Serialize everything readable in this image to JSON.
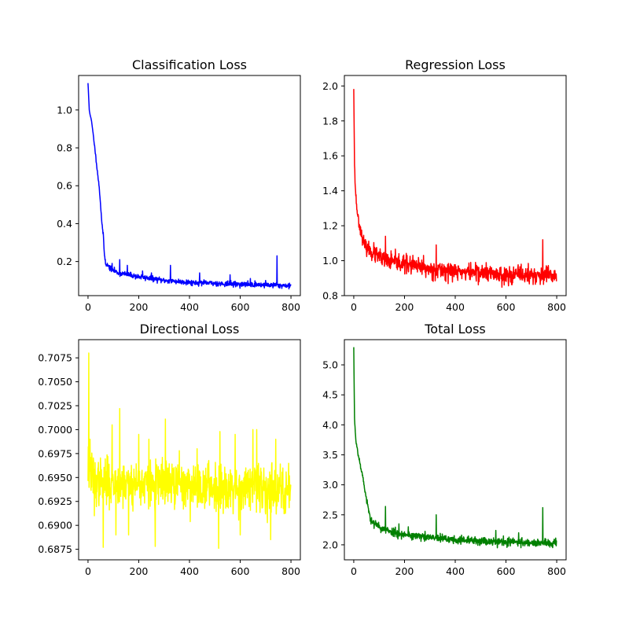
{
  "chart_data": [
    {
      "type": "line",
      "title": "Classification Loss",
      "xlabel": "",
      "ylabel": "",
      "color": "#0000ff",
      "xlim": [
        -37,
        837
      ],
      "ylim": [
        0.02,
        1.182
      ],
      "xticks": [
        0,
        200,
        400,
        600,
        800
      ],
      "xtick_labels": [
        "0",
        "200",
        "400",
        "600",
        "800"
      ],
      "yticks": [
        0.2,
        0.4,
        0.6,
        0.8,
        1.0
      ],
      "ytick_labels": [
        "0.2",
        "0.4",
        "0.6",
        "0.8",
        "1.0"
      ],
      "n_points": 800,
      "curve": {
        "kind": "decay",
        "start": 1.14,
        "points": [
          [
            0,
            1.14
          ],
          [
            5,
            1.0
          ],
          [
            15,
            0.93
          ],
          [
            25,
            0.82
          ],
          [
            35,
            0.7
          ],
          [
            45,
            0.58
          ],
          [
            55,
            0.4
          ],
          [
            60,
            0.34
          ],
          [
            65,
            0.23
          ],
          [
            70,
            0.19
          ],
          [
            90,
            0.16
          ],
          [
            120,
            0.14
          ],
          [
            200,
            0.12
          ],
          [
            300,
            0.1
          ],
          [
            400,
            0.09
          ],
          [
            600,
            0.08
          ],
          [
            800,
            0.073
          ]
        ],
        "noise": 0.007,
        "seed": 11
      },
      "spikes": [
        [
          95,
          0.19
        ],
        [
          125,
          0.21
        ],
        [
          155,
          0.18
        ],
        [
          215,
          0.15
        ],
        [
          250,
          0.14
        ],
        [
          325,
          0.18
        ],
        [
          440,
          0.14
        ],
        [
          560,
          0.13
        ],
        [
          640,
          0.11
        ],
        [
          700,
          0.1
        ],
        [
          745,
          0.23
        ]
      ]
    },
    {
      "type": "line",
      "title": "Regression Loss",
      "xlabel": "",
      "ylabel": "",
      "color": "#ff0000",
      "xlim": [
        -37,
        837
      ],
      "ylim": [
        0.8,
        2.06
      ],
      "xticks": [
        0,
        200,
        400,
        600,
        800
      ],
      "xtick_labels": [
        "0",
        "200",
        "400",
        "600",
        "800"
      ],
      "yticks": [
        0.8,
        1.0,
        1.2,
        1.4,
        1.6,
        1.8,
        2.0
      ],
      "ytick_labels": [
        "0.8",
        "1.0",
        "1.2",
        "1.4",
        "1.6",
        "1.8",
        "2.0"
      ],
      "n_points": 800,
      "curve": {
        "kind": "decay",
        "start": 1.99,
        "points": [
          [
            0,
            1.99
          ],
          [
            3,
            1.55
          ],
          [
            6,
            1.42
          ],
          [
            12,
            1.3
          ],
          [
            20,
            1.22
          ],
          [
            30,
            1.15
          ],
          [
            45,
            1.08
          ],
          [
            70,
            1.05
          ],
          [
            120,
            1.0
          ],
          [
            200,
            0.98
          ],
          [
            300,
            0.95
          ],
          [
            400,
            0.94
          ],
          [
            600,
            0.92
          ],
          [
            800,
            0.91
          ]
        ],
        "noise": 0.025,
        "seed": 23
      },
      "spikes": [
        [
          125,
          1.14
        ],
        [
          178,
          1.04
        ],
        [
          210,
          1.03
        ],
        [
          275,
          1.03
        ],
        [
          325,
          1.09
        ],
        [
          480,
          0.99
        ],
        [
          660,
          0.98
        ],
        [
          745,
          1.12
        ]
      ]
    },
    {
      "type": "line",
      "title": "Directional Loss",
      "xlabel": "",
      "ylabel": "",
      "color": "#ffff00",
      "xlim": [
        -37,
        837
      ],
      "ylim": [
        0.6864,
        0.7094
      ],
      "xticks": [
        0,
        200,
        400,
        600,
        800
      ],
      "xtick_labels": [
        "0",
        "200",
        "400",
        "600",
        "800"
      ],
      "yticks": [
        0.6875,
        0.69,
        0.6925,
        0.695,
        0.6975,
        0.7,
        0.7025,
        0.705,
        0.7075
      ],
      "ytick_labels": [
        "0.6875",
        "0.6900",
        "0.6925",
        "0.6950",
        "0.6975",
        "0.7000",
        "0.7025",
        "0.7050",
        "0.7075"
      ],
      "n_points": 800,
      "curve": {
        "kind": "flat",
        "start": 0.694,
        "points": [
          [
            0,
            0.696
          ],
          [
            30,
            0.6945
          ],
          [
            800,
            0.6937
          ]
        ],
        "noise": 0.0012,
        "seed": 37
      },
      "spikes": [
        [
          3,
          0.708
        ],
        [
          8,
          0.699
        ],
        [
          25,
          0.691
        ],
        [
          60,
          0.6877
        ],
        [
          95,
          0.7005
        ],
        [
          110,
          0.689
        ],
        [
          125,
          0.7022
        ],
        [
          160,
          0.689
        ],
        [
          200,
          0.6995
        ],
        [
          240,
          0.699
        ],
        [
          265,
          0.6878
        ],
        [
          305,
          0.7011
        ],
        [
          360,
          0.6978
        ],
        [
          430,
          0.698
        ],
        [
          515,
          0.6876
        ],
        [
          520,
          0.6998
        ],
        [
          580,
          0.6995
        ],
        [
          600,
          0.689
        ],
        [
          650,
          0.7
        ],
        [
          665,
          0.7
        ],
        [
          720,
          0.6885
        ],
        [
          740,
          0.699
        ]
      ]
    },
    {
      "type": "line",
      "title": "Total Loss",
      "xlabel": "",
      "ylabel": "",
      "color": "#008000",
      "xlim": [
        -37,
        837
      ],
      "ylim": [
        1.75,
        5.42
      ],
      "xticks": [
        0,
        200,
        400,
        600,
        800
      ],
      "xtick_labels": [
        "0",
        "200",
        "400",
        "600",
        "800"
      ],
      "yticks": [
        2.0,
        2.5,
        3.0,
        3.5,
        4.0,
        4.5,
        5.0
      ],
      "ytick_labels": [
        "2.0",
        "2.5",
        "3.0",
        "3.5",
        "4.0",
        "4.5",
        "5.0"
      ],
      "n_points": 800,
      "curve": {
        "kind": "decay",
        "start": 5.27,
        "points": [
          [
            0,
            5.27
          ],
          [
            3,
            4.1
          ],
          [
            8,
            3.75
          ],
          [
            20,
            3.45
          ],
          [
            35,
            3.15
          ],
          [
            50,
            2.75
          ],
          [
            65,
            2.45
          ],
          [
            80,
            2.35
          ],
          [
            120,
            2.25
          ],
          [
            200,
            2.17
          ],
          [
            300,
            2.12
          ],
          [
            400,
            2.08
          ],
          [
            600,
            2.05
          ],
          [
            800,
            2.02
          ]
        ],
        "noise": 0.035,
        "seed": 53
      },
      "spikes": [
        [
          125,
          2.64
        ],
        [
          178,
          2.35
        ],
        [
          215,
          2.3
        ],
        [
          325,
          2.5
        ],
        [
          560,
          2.24
        ],
        [
          650,
          2.2
        ],
        [
          745,
          2.62
        ]
      ]
    }
  ]
}
